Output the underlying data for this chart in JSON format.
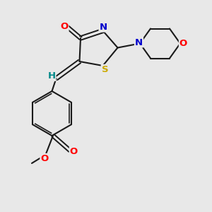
{
  "background_color": "#e8e8e8",
  "bond_color": "#1a1a1a",
  "atom_colors": {
    "O": "#ff0000",
    "N": "#0000cc",
    "S": "#ccaa00",
    "H": "#008888",
    "C": "#1a1a1a"
  },
  "figsize": [
    3.0,
    3.0
  ],
  "dpi": 100
}
